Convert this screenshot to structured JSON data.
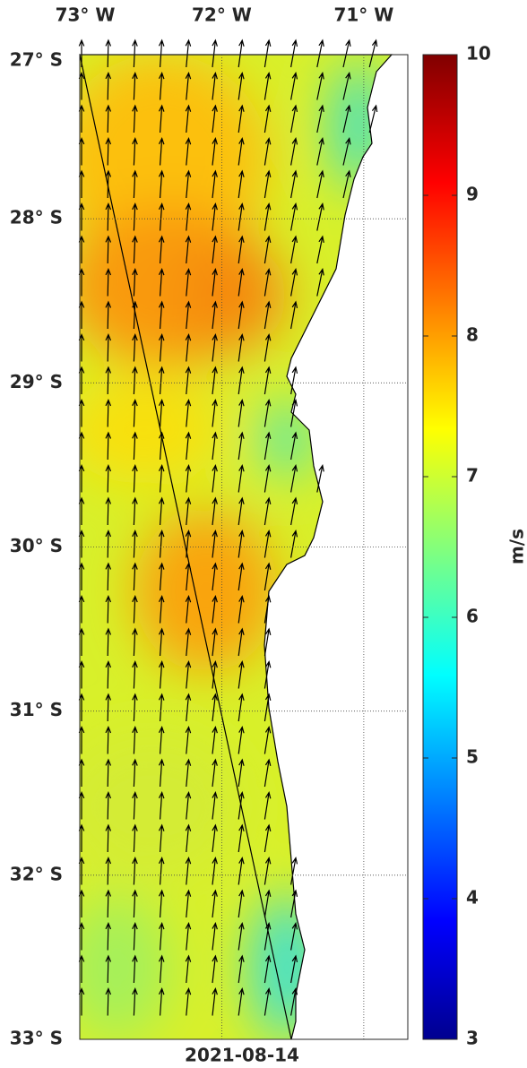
{
  "map": {
    "lonlim": [
      -73,
      -70.69
    ],
    "latlim": [
      -33,
      -27
    ],
    "lon_ticks": [
      {
        "value": -73,
        "label": "73° W"
      },
      {
        "value": -72,
        "label": "72° W"
      },
      {
        "value": -71,
        "label": "71° W"
      }
    ],
    "lat_ticks": [
      {
        "value": -27,
        "label": "27° S"
      },
      {
        "value": -28,
        "label": "28° S"
      },
      {
        "value": -29,
        "label": "29° S"
      },
      {
        "value": -30,
        "label": "30° S"
      },
      {
        "value": -31,
        "label": "31° S"
      },
      {
        "value": -32,
        "label": "32° S"
      },
      {
        "value": -33,
        "label": "33° S"
      }
    ],
    "date": "2021-08-14"
  },
  "colorbar": {
    "lim": [
      3,
      10
    ],
    "ticks": [
      3,
      4,
      5,
      6,
      7,
      8,
      9,
      10
    ],
    "label": "m/s"
  }
}
